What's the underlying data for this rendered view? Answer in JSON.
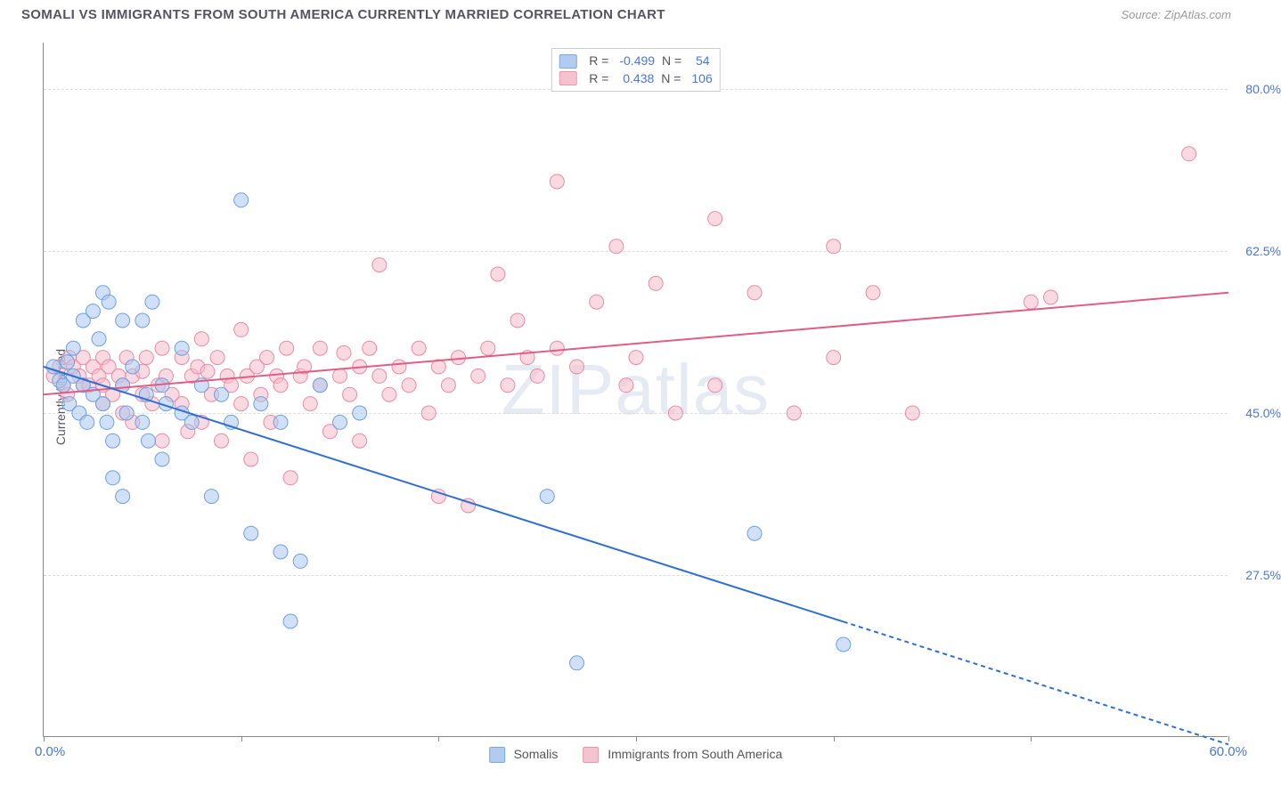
{
  "header": {
    "title": "SOMALI VS IMMIGRANTS FROM SOUTH AMERICA CURRENTLY MARRIED CORRELATION CHART",
    "source_prefix": "Source: ",
    "source_name": "ZipAtlas.com"
  },
  "axes": {
    "ylabel": "Currently Married",
    "xlim": [
      0,
      60
    ],
    "ylim": [
      10,
      85
    ],
    "yticks": [
      27.5,
      45.0,
      62.5,
      80.0
    ],
    "ytick_labels": [
      "27.5%",
      "45.0%",
      "62.5%",
      "80.0%"
    ],
    "xtick_positions": [
      0,
      10,
      20,
      30,
      40,
      50,
      60
    ],
    "xlabel_min": "0.0%",
    "xlabel_max": "60.0%",
    "grid_color": "#dddddd",
    "axis_color": "#888888"
  },
  "watermark": "ZIPatlas",
  "series": {
    "somalis": {
      "label": "Somalis",
      "fill": "#a9c7ef",
      "stroke": "#6ea0e0",
      "fill_opacity": 0.55,
      "line_color": "#2f6fd0",
      "r_value": "-0.499",
      "n_value": "54",
      "trend": {
        "x1": 0,
        "y1": 50,
        "x2": 50,
        "y2": 16,
        "solid_until_x": 40.5
      },
      "marker_radius": 8,
      "points": [
        [
          0.5,
          50
        ],
        [
          0.8,
          48.5
        ],
        [
          1,
          48
        ],
        [
          1.2,
          50.5
        ],
        [
          1.3,
          46
        ],
        [
          1.5,
          52
        ],
        [
          1.5,
          49
        ],
        [
          1.8,
          45
        ],
        [
          2,
          55
        ],
        [
          2,
          48
        ],
        [
          2.2,
          44
        ],
        [
          2.5,
          56
        ],
        [
          2.5,
          47
        ],
        [
          2.8,
          53
        ],
        [
          3,
          58
        ],
        [
          3,
          46
        ],
        [
          3.2,
          44
        ],
        [
          3.3,
          57
        ],
        [
          3.5,
          42
        ],
        [
          3.5,
          38
        ],
        [
          4,
          55
        ],
        [
          4,
          48
        ],
        [
          4,
          36
        ],
        [
          4.2,
          45
        ],
        [
          4.5,
          50
        ],
        [
          5,
          55
        ],
        [
          5,
          44
        ],
        [
          5.2,
          47
        ],
        [
          5.3,
          42
        ],
        [
          5.5,
          57
        ],
        [
          6,
          48
        ],
        [
          6,
          40
        ],
        [
          6.2,
          46
        ],
        [
          7,
          52
        ],
        [
          7,
          45
        ],
        [
          7.5,
          44
        ],
        [
          8,
          48
        ],
        [
          8.5,
          36
        ],
        [
          9,
          47
        ],
        [
          9.5,
          44
        ],
        [
          10,
          68
        ],
        [
          10.5,
          32
        ],
        [
          11,
          46
        ],
        [
          12,
          44
        ],
        [
          12,
          30
        ],
        [
          12.5,
          22.5
        ],
        [
          13,
          29
        ],
        [
          14,
          48
        ],
        [
          15,
          44
        ],
        [
          16,
          45
        ],
        [
          25.5,
          36
        ],
        [
          27,
          18
        ],
        [
          36,
          32
        ],
        [
          40.5,
          20
        ]
      ]
    },
    "south_america": {
      "label": "Immigrants from South America",
      "fill": "#f6bccb",
      "stroke": "#e98ba3",
      "fill_opacity": 0.55,
      "line_color": "#e05d86",
      "r_value": "0.438",
      "n_value": "106",
      "trend": {
        "x1": 0,
        "y1": 47,
        "x2": 60,
        "y2": 58
      },
      "marker_radius": 8,
      "points": [
        [
          0.5,
          49
        ],
        [
          0.8,
          50
        ],
        [
          1,
          48
        ],
        [
          1.2,
          47
        ],
        [
          1.3,
          51
        ],
        [
          1.5,
          50
        ],
        [
          1.8,
          49
        ],
        [
          2,
          48
        ],
        [
          2,
          51
        ],
        [
          2.3,
          48
        ],
        [
          2.5,
          50
        ],
        [
          2.8,
          49
        ],
        [
          3,
          46
        ],
        [
          3,
          51
        ],
        [
          3,
          48
        ],
        [
          3.3,
          50
        ],
        [
          3.5,
          47
        ],
        [
          3.8,
          49
        ],
        [
          4,
          45
        ],
        [
          4,
          48
        ],
        [
          4.2,
          51
        ],
        [
          4.5,
          44
        ],
        [
          4.5,
          49
        ],
        [
          5,
          47
        ],
        [
          5,
          49.5
        ],
        [
          5.2,
          51
        ],
        [
          5.5,
          46
        ],
        [
          5.8,
          48
        ],
        [
          6,
          52
        ],
        [
          6,
          42
        ],
        [
          6.2,
          49
        ],
        [
          6.5,
          47
        ],
        [
          7,
          51
        ],
        [
          7,
          46
        ],
        [
          7.3,
          43
        ],
        [
          7.5,
          49
        ],
        [
          7.8,
          50
        ],
        [
          8,
          44
        ],
        [
          8,
          53
        ],
        [
          8.3,
          49.5
        ],
        [
          8.5,
          47
        ],
        [
          8.8,
          51
        ],
        [
          9,
          42
        ],
        [
          9.3,
          49
        ],
        [
          9.5,
          48
        ],
        [
          10,
          46
        ],
        [
          10,
          54
        ],
        [
          10.3,
          49
        ],
        [
          10.5,
          40
        ],
        [
          10.8,
          50
        ],
        [
          11,
          47
        ],
        [
          11.3,
          51
        ],
        [
          11.5,
          44
        ],
        [
          11.8,
          49
        ],
        [
          12,
          48
        ],
        [
          12.3,
          52
        ],
        [
          12.5,
          38
        ],
        [
          13,
          49
        ],
        [
          13.2,
          50
        ],
        [
          13.5,
          46
        ],
        [
          14,
          48
        ],
        [
          14,
          52
        ],
        [
          14.5,
          43
        ],
        [
          15,
          49
        ],
        [
          15.2,
          51.5
        ],
        [
          15.5,
          47
        ],
        [
          16,
          50
        ],
        [
          16,
          42
        ],
        [
          16.5,
          52
        ],
        [
          17,
          49
        ],
        [
          17,
          61
        ],
        [
          17.5,
          47
        ],
        [
          18,
          50
        ],
        [
          18.5,
          48
        ],
        [
          19,
          52
        ],
        [
          19.5,
          45
        ],
        [
          20,
          50
        ],
        [
          20,
          36
        ],
        [
          20.5,
          48
        ],
        [
          21,
          51
        ],
        [
          21.5,
          35
        ],
        [
          22,
          49
        ],
        [
          22.5,
          52
        ],
        [
          23,
          60
        ],
        [
          23.5,
          48
        ],
        [
          24,
          55
        ],
        [
          24.5,
          51
        ],
        [
          25,
          49
        ],
        [
          26,
          52
        ],
        [
          26,
          70
        ],
        [
          27,
          50
        ],
        [
          28,
          57
        ],
        [
          29,
          63
        ],
        [
          29.5,
          48
        ],
        [
          30,
          51
        ],
        [
          31,
          59
        ],
        [
          32,
          45
        ],
        [
          34,
          66
        ],
        [
          34,
          48
        ],
        [
          36,
          58
        ],
        [
          38,
          45
        ],
        [
          40,
          63
        ],
        [
          40,
          51
        ],
        [
          42,
          58
        ],
        [
          44,
          45
        ],
        [
          50,
          57
        ],
        [
          51,
          57.5
        ],
        [
          58,
          73
        ]
      ]
    }
  },
  "top_legend": {
    "r_label": "R =",
    "n_label": "N ="
  },
  "colors": {
    "text": "#555560",
    "link": "#4a76d4",
    "bg": "#ffffff"
  }
}
